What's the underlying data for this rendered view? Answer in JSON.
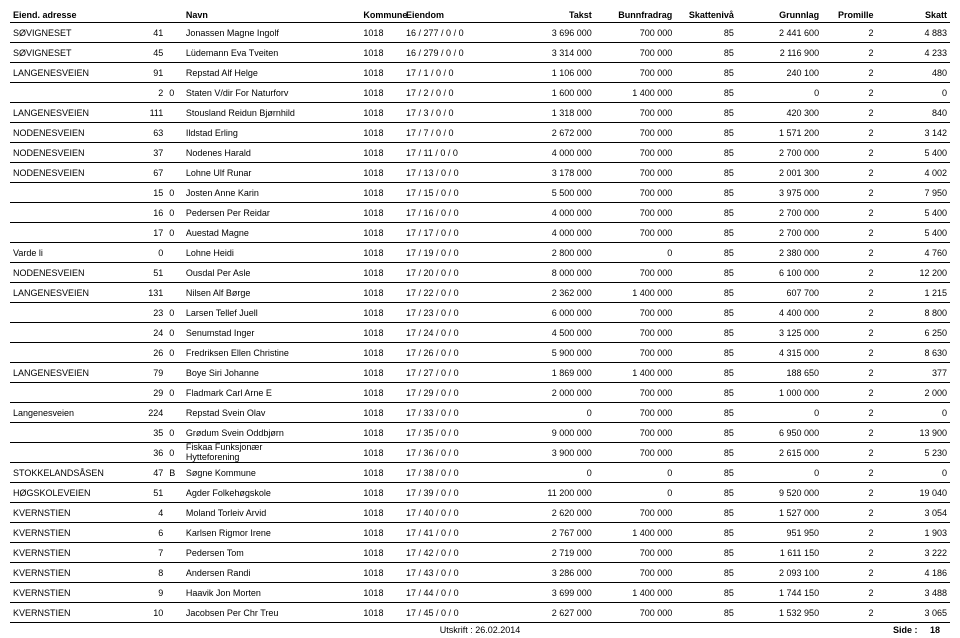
{
  "headers": {
    "adresse": "Eiend. adresse",
    "navn": "Navn",
    "kommune": "Kommune",
    "eiendom": "Eiendom",
    "takst": "Takst",
    "bunnfradrag": "Bunnfradrag",
    "skatteniva": "Skattenivå",
    "grunnlag": "Grunnlag",
    "promille": "Promille",
    "skatt": "Skatt"
  },
  "footer": {
    "utskrift_label": "Utskrift :",
    "utskrift_date": "26.02.2014",
    "side_label": "Side :",
    "side_num": "18"
  },
  "rows": [
    {
      "adr": "SØVIGNESET",
      "nr": "41",
      "b": "",
      "navn": "Jonassen Magne Ingolf",
      "kom": "1018",
      "eien": "16 / 277 / 0 / 0",
      "takst": "3 696 000",
      "bunn": "700 000",
      "skn": "85",
      "grun": "2 441 600",
      "prom": "2",
      "skatt": "4 883"
    },
    {
      "adr": "SØVIGNESET",
      "nr": "45",
      "b": "",
      "navn": "Lüdemann Eva Tveiten",
      "kom": "1018",
      "eien": "16 / 279 / 0 / 0",
      "takst": "3 314 000",
      "bunn": "700 000",
      "skn": "85",
      "grun": "2 116 900",
      "prom": "2",
      "skatt": "4 233"
    },
    {
      "adr": "LANGENESVEIEN",
      "nr": "91",
      "b": "",
      "navn": "Repstad Alf Helge",
      "kom": "1018",
      "eien": "17 / 1 / 0 / 0",
      "takst": "1 106 000",
      "bunn": "700 000",
      "skn": "85",
      "grun": "240 100",
      "prom": "2",
      "skatt": "480"
    },
    {
      "adr": "",
      "nr": "2",
      "b": "0",
      "navn": "Staten V/dir For Naturforv",
      "kom": "1018",
      "eien": "17 / 2 / 0 / 0",
      "takst": "1 600 000",
      "bunn": "1 400 000",
      "skn": "85",
      "grun": "0",
      "prom": "2",
      "skatt": "0"
    },
    {
      "adr": "LANGENESVEIEN",
      "nr": "111",
      "b": "",
      "navn": "Stousland Reidun Bjørnhild",
      "kom": "1018",
      "eien": "17 / 3 / 0 / 0",
      "takst": "1 318 000",
      "bunn": "700 000",
      "skn": "85",
      "grun": "420 300",
      "prom": "2",
      "skatt": "840"
    },
    {
      "adr": "NODENESVEIEN",
      "nr": "63",
      "b": "",
      "navn": "Ildstad Erling",
      "kom": "1018",
      "eien": "17 / 7 / 0 / 0",
      "takst": "2 672 000",
      "bunn": "700 000",
      "skn": "85",
      "grun": "1 571 200",
      "prom": "2",
      "skatt": "3 142"
    },
    {
      "adr": "NODENESVEIEN",
      "nr": "37",
      "b": "",
      "navn": "Nodenes Harald",
      "kom": "1018",
      "eien": "17 / 11 / 0 / 0",
      "takst": "4 000 000",
      "bunn": "700 000",
      "skn": "85",
      "grun": "2 700 000",
      "prom": "2",
      "skatt": "5 400"
    },
    {
      "adr": "NODENESVEIEN",
      "nr": "67",
      "b": "",
      "navn": "Lohne Ulf Runar",
      "kom": "1018",
      "eien": "17 / 13 / 0 / 0",
      "takst": "3 178 000",
      "bunn": "700 000",
      "skn": "85",
      "grun": "2 001 300",
      "prom": "2",
      "skatt": "4 002"
    },
    {
      "adr": "",
      "nr": "15",
      "b": "0",
      "navn": "Josten Anne Karin",
      "kom": "1018",
      "eien": "17 / 15 / 0 / 0",
      "takst": "5 500 000",
      "bunn": "700 000",
      "skn": "85",
      "grun": "3 975 000",
      "prom": "2",
      "skatt": "7 950"
    },
    {
      "adr": "",
      "nr": "16",
      "b": "0",
      "navn": "Pedersen Per Reidar",
      "kom": "1018",
      "eien": "17 / 16 / 0 / 0",
      "takst": "4 000 000",
      "bunn": "700 000",
      "skn": "85",
      "grun": "2 700 000",
      "prom": "2",
      "skatt": "5 400"
    },
    {
      "adr": "",
      "nr": "17",
      "b": "0",
      "navn": "Auestad Magne",
      "kom": "1018",
      "eien": "17 / 17 / 0 / 0",
      "takst": "4 000 000",
      "bunn": "700 000",
      "skn": "85",
      "grun": "2 700 000",
      "prom": "2",
      "skatt": "5 400"
    },
    {
      "adr": "Varde li",
      "nr": "0",
      "b": "",
      "navn": "Lohne Heidi",
      "kom": "1018",
      "eien": "17 / 19 / 0 / 0",
      "takst": "2 800 000",
      "bunn": "0",
      "skn": "85",
      "grun": "2 380 000",
      "prom": "2",
      "skatt": "4 760"
    },
    {
      "adr": "NODENESVEIEN",
      "nr": "51",
      "b": "",
      "navn": "Ousdal Per Asle",
      "kom": "1018",
      "eien": "17 / 20 / 0 / 0",
      "takst": "8 000 000",
      "bunn": "700 000",
      "skn": "85",
      "grun": "6 100 000",
      "prom": "2",
      "skatt": "12 200"
    },
    {
      "adr": "LANGENESVEIEN",
      "nr": "131",
      "b": "",
      "navn": "Nilsen Alf Børge",
      "kom": "1018",
      "eien": "17 / 22 / 0 / 0",
      "takst": "2 362 000",
      "bunn": "1 400 000",
      "skn": "85",
      "grun": "607 700",
      "prom": "2",
      "skatt": "1 215"
    },
    {
      "adr": "",
      "nr": "23",
      "b": "0",
      "navn": "Larsen Tellef Juell",
      "kom": "1018",
      "eien": "17 / 23 / 0 / 0",
      "takst": "6 000 000",
      "bunn": "700 000",
      "skn": "85",
      "grun": "4 400 000",
      "prom": "2",
      "skatt": "8 800"
    },
    {
      "adr": "",
      "nr": "24",
      "b": "0",
      "navn": "Senumstad Inger",
      "kom": "1018",
      "eien": "17 / 24 / 0 / 0",
      "takst": "4 500 000",
      "bunn": "700 000",
      "skn": "85",
      "grun": "3 125 000",
      "prom": "2",
      "skatt": "6 250"
    },
    {
      "adr": "",
      "nr": "26",
      "b": "0",
      "navn": "Fredriksen Ellen Christine",
      "kom": "1018",
      "eien": "17 / 26 / 0 / 0",
      "takst": "5 900 000",
      "bunn": "700 000",
      "skn": "85",
      "grun": "4 315 000",
      "prom": "2",
      "skatt": "8 630"
    },
    {
      "adr": "LANGENESVEIEN",
      "nr": "79",
      "b": "",
      "navn": "Boye Siri Johanne",
      "kom": "1018",
      "eien": "17 / 27 / 0 / 0",
      "takst": "1 869 000",
      "bunn": "1 400 000",
      "skn": "85",
      "grun": "188 650",
      "prom": "2",
      "skatt": "377"
    },
    {
      "adr": "",
      "nr": "29",
      "b": "0",
      "navn": "Fladmark Carl Arne E",
      "kom": "1018",
      "eien": "17 / 29 / 0 / 0",
      "takst": "2 000 000",
      "bunn": "700 000",
      "skn": "85",
      "grun": "1 000 000",
      "prom": "2",
      "skatt": "2 000"
    },
    {
      "adr": "Langenesveien",
      "nr": "224",
      "b": "",
      "navn": "Repstad Svein Olav",
      "kom": "1018",
      "eien": "17 / 33 / 0 / 0",
      "takst": "0",
      "bunn": "700 000",
      "skn": "85",
      "grun": "0",
      "prom": "2",
      "skatt": "0"
    },
    {
      "adr": "",
      "nr": "35",
      "b": "0",
      "navn": "Grødum Svein Oddbjørn",
      "kom": "1018",
      "eien": "17 / 35 / 0 / 0",
      "takst": "9 000 000",
      "bunn": "700 000",
      "skn": "85",
      "grun": "6 950 000",
      "prom": "2",
      "skatt": "13 900"
    },
    {
      "adr": "",
      "nr": "36",
      "b": "0",
      "navn": "Fiskaa Funksjonær\nHytteforening",
      "kom": "1018",
      "eien": "17 / 36 / 0 / 0",
      "takst": "3 900 000",
      "bunn": "700 000",
      "skn": "85",
      "grun": "2 615 000",
      "prom": "2",
      "skatt": "5 230"
    },
    {
      "adr": "STOKKELANDSÅSEN",
      "nr": "47",
      "b": "B",
      "navn": "Søgne Kommune",
      "kom": "1018",
      "eien": "17 / 38 / 0 / 0",
      "takst": "0",
      "bunn": "0",
      "skn": "85",
      "grun": "0",
      "prom": "2",
      "skatt": "0"
    },
    {
      "adr": "HØGSKOLEVEIEN",
      "nr": "51",
      "b": "",
      "navn": "Agder Folkehøgskole",
      "kom": "1018",
      "eien": "17 / 39 / 0 / 0",
      "takst": "11 200 000",
      "bunn": "0",
      "skn": "85",
      "grun": "9 520 000",
      "prom": "2",
      "skatt": "19 040"
    },
    {
      "adr": "KVERNSTIEN",
      "nr": "4",
      "b": "",
      "navn": "Moland Torleiv Arvid",
      "kom": "1018",
      "eien": "17 / 40 / 0 / 0",
      "takst": "2 620 000",
      "bunn": "700 000",
      "skn": "85",
      "grun": "1 527 000",
      "prom": "2",
      "skatt": "3 054"
    },
    {
      "adr": "KVERNSTIEN",
      "nr": "6",
      "b": "",
      "navn": "Karlsen Rigmor Irene",
      "kom": "1018",
      "eien": "17 / 41 / 0 / 0",
      "takst": "2 767 000",
      "bunn": "1 400 000",
      "skn": "85",
      "grun": "951 950",
      "prom": "2",
      "skatt": "1 903"
    },
    {
      "adr": "KVERNSTIEN",
      "nr": "7",
      "b": "",
      "navn": "Pedersen Tom",
      "kom": "1018",
      "eien": "17 / 42 / 0 / 0",
      "takst": "2 719 000",
      "bunn": "700 000",
      "skn": "85",
      "grun": "1 611 150",
      "prom": "2",
      "skatt": "3 222"
    },
    {
      "adr": "KVERNSTIEN",
      "nr": "8",
      "b": "",
      "navn": "Andersen Randi",
      "kom": "1018",
      "eien": "17 / 43 / 0 / 0",
      "takst": "3 286 000",
      "bunn": "700 000",
      "skn": "85",
      "grun": "2 093 100",
      "prom": "2",
      "skatt": "4 186"
    },
    {
      "adr": "KVERNSTIEN",
      "nr": "9",
      "b": "",
      "navn": "Haavik Jon Morten",
      "kom": "1018",
      "eien": "17 / 44 / 0 / 0",
      "takst": "3 699 000",
      "bunn": "1 400 000",
      "skn": "85",
      "grun": "1 744 150",
      "prom": "2",
      "skatt": "3 488"
    },
    {
      "adr": "KVERNSTIEN",
      "nr": "10",
      "b": "",
      "navn": "Jacobsen Per Chr Treu",
      "kom": "1018",
      "eien": "17 / 45 / 0 / 0",
      "takst": "2 627 000",
      "bunn": "700 000",
      "skn": "85",
      "grun": "1 532 950",
      "prom": "2",
      "skatt": "3 065"
    }
  ]
}
